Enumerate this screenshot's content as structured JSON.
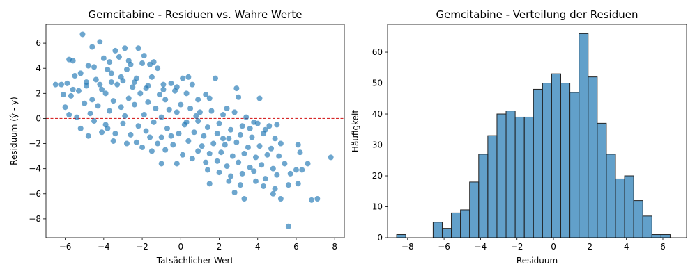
{
  "chart_data": [
    {
      "type": "scatter",
      "title": "Gemcitabine - Residuen vs. Wahre Werte",
      "xlabel": "Tatsächlicher Wert",
      "ylabel": "Residuum (ŷ - y)",
      "xlim": [
        -7,
        8.5
      ],
      "ylim": [
        -9.5,
        7.5
      ],
      "xticks": [
        -6,
        -4,
        -2,
        0,
        2,
        4,
        6,
        8
      ],
      "yticks": [
        -8,
        -6,
        -4,
        -2,
        0,
        2,
        4,
        6
      ],
      "color": "#1f77b4",
      "reference_line": {
        "y": 0,
        "color": "#d62728",
        "style": "dashed"
      },
      "points": [
        [
          -5.1,
          6.7
        ],
        [
          -4.2,
          6.1
        ],
        [
          -2.9,
          5.6
        ],
        [
          -3.4,
          5.4
        ],
        [
          -2.2,
          5.6
        ],
        [
          -4.6,
          5.7
        ],
        [
          -1.6,
          4.3
        ],
        [
          -1.9,
          5.0
        ],
        [
          -5.8,
          4.7
        ],
        [
          -5.6,
          4.6
        ],
        [
          -3.2,
          4.9
        ],
        [
          -2.6,
          4.3
        ],
        [
          -4.0,
          4.8
        ],
        [
          -1.2,
          4.0
        ],
        [
          -3.8,
          3.9
        ],
        [
          -2.0,
          4.4
        ],
        [
          -4.8,
          4.2
        ],
        [
          -5.2,
          3.6
        ],
        [
          -5.5,
          3.4
        ],
        [
          -3.6,
          3.6
        ],
        [
          -2.8,
          3.9
        ],
        [
          -2.3,
          3.2
        ],
        [
          -3.0,
          3.0
        ],
        [
          -4.4,
          3.1
        ],
        [
          -1.5,
          3.3
        ],
        [
          -0.5,
          2.8
        ],
        [
          0.1,
          3.2
        ],
        [
          0.4,
          3.3
        ],
        [
          -0.9,
          2.7
        ],
        [
          -4.9,
          2.9
        ],
        [
          -5.9,
          2.8
        ],
        [
          -6.2,
          2.7
        ],
        [
          -3.3,
          2.7
        ],
        [
          -2.5,
          2.5
        ],
        [
          -1.8,
          2.4
        ],
        [
          -4.1,
          2.3
        ],
        [
          -5.3,
          2.2
        ],
        [
          -3.9,
          2.0
        ],
        [
          -2.1,
          2.0
        ],
        [
          -1.1,
          1.9
        ],
        [
          -0.3,
          2.2
        ],
        [
          0.3,
          2.0
        ],
        [
          0.6,
          2.7
        ],
        [
          1.3,
          1.9
        ],
        [
          1.8,
          3.2
        ],
        [
          2.9,
          2.4
        ],
        [
          3.0,
          1.7
        ],
        [
          4.1,
          1.6
        ],
        [
          -6.1,
          1.9
        ],
        [
          -5.7,
          1.8
        ],
        [
          -4.6,
          1.5
        ],
        [
          -3.5,
          1.4
        ],
        [
          -2.7,
          1.6
        ],
        [
          -1.7,
          1.3
        ],
        [
          -0.8,
          1.5
        ],
        [
          0.0,
          1.1
        ],
        [
          -5.0,
          1.2
        ],
        [
          -4.3,
          1.0
        ],
        [
          -3.1,
          0.9
        ],
        [
          -2.4,
          1.1
        ],
        [
          -1.3,
          0.8
        ],
        [
          -0.6,
          0.7
        ],
        [
          0.5,
          0.8
        ],
        [
          1.0,
          0.5
        ],
        [
          -6.0,
          0.9
        ],
        [
          -5.8,
          0.3
        ],
        [
          -5.4,
          0.1
        ],
        [
          -4.7,
          0.4
        ],
        [
          -3.7,
          0.6
        ],
        [
          -2.9,
          0.2
        ],
        [
          -1.9,
          0.3
        ],
        [
          -1.0,
          0.1
        ],
        [
          -0.2,
          0.5
        ],
        [
          0.8,
          0.2
        ],
        [
          1.6,
          0.6
        ],
        [
          2.2,
          0.3
        ],
        [
          2.8,
          0.5
        ],
        [
          3.4,
          0.1
        ],
        [
          3.8,
          -0.3
        ],
        [
          -4.5,
          -0.2
        ],
        [
          -3.9,
          -0.5
        ],
        [
          -3.0,
          -0.4
        ],
        [
          -2.2,
          -0.6
        ],
        [
          -1.4,
          -0.3
        ],
        [
          -0.7,
          -0.8
        ],
        [
          0.2,
          -0.5
        ],
        [
          0.9,
          -0.2
        ],
        [
          1.4,
          -0.7
        ],
        [
          2.0,
          -0.4
        ],
        [
          2.6,
          -0.9
        ],
        [
          3.2,
          -0.6
        ],
        [
          4.0,
          -0.4
        ],
        [
          4.6,
          -0.6
        ],
        [
          5.0,
          -0.5
        ],
        [
          -5.2,
          -0.8
        ],
        [
          -4.8,
          -1.4
        ],
        [
          -4.1,
          -1.1
        ],
        [
          -3.4,
          -1.2
        ],
        [
          -2.6,
          -1.3
        ],
        [
          -1.8,
          -1.0
        ],
        [
          -1.0,
          -1.5
        ],
        [
          -0.1,
          -1.2
        ],
        [
          0.7,
          -1.1
        ],
        [
          1.2,
          -1.4
        ],
        [
          1.9,
          -1.2
        ],
        [
          2.5,
          -1.6
        ],
        [
          3.1,
          -1.3
        ],
        [
          3.7,
          -1.5
        ],
        [
          4.3,
          -1.2
        ],
        [
          4.9,
          -1.6
        ],
        [
          -3.5,
          -1.8
        ],
        [
          -2.8,
          -2.0
        ],
        [
          -2.0,
          -2.3
        ],
        [
          -1.2,
          -2.0
        ],
        [
          -0.4,
          -2.1
        ],
        [
          0.4,
          -1.8
        ],
        [
          1.1,
          -2.2
        ],
        [
          1.7,
          -2.0
        ],
        [
          2.3,
          -2.1
        ],
        [
          2.9,
          -1.9
        ],
        [
          3.5,
          -2.3
        ],
        [
          4.1,
          -2.2
        ],
        [
          4.7,
          -2.4
        ],
        [
          5.2,
          -2.0
        ],
        [
          6.1,
          -2.1
        ],
        [
          -1.5,
          -2.6
        ],
        [
          -0.8,
          -2.5
        ],
        [
          0.1,
          -2.9
        ],
        [
          0.9,
          -2.6
        ],
        [
          1.5,
          -2.8
        ],
        [
          2.1,
          -2.7
        ],
        [
          2.7,
          -3.0
        ],
        [
          3.3,
          -2.8
        ],
        [
          3.9,
          -3.1
        ],
        [
          4.5,
          -2.9
        ],
        [
          5.1,
          -3.0
        ],
        [
          6.2,
          -2.7
        ],
        [
          7.8,
          -3.1
        ],
        [
          -1.0,
          -3.6
        ],
        [
          -0.2,
          -3.6
        ],
        [
          0.6,
          -3.2
        ],
        [
          1.3,
          -3.5
        ],
        [
          1.9,
          -3.4
        ],
        [
          2.4,
          -3.8
        ],
        [
          3.0,
          -3.5
        ],
        [
          3.6,
          -3.9
        ],
        [
          4.2,
          -3.7
        ],
        [
          4.8,
          -4.0
        ],
        [
          5.4,
          -3.6
        ],
        [
          6.0,
          -4.1
        ],
        [
          6.6,
          -3.6
        ],
        [
          1.4,
          -4.1
        ],
        [
          2.0,
          -4.3
        ],
        [
          2.6,
          -4.6
        ],
        [
          3.2,
          -4.4
        ],
        [
          3.8,
          -4.2
        ],
        [
          4.4,
          -4.8
        ],
        [
          5.0,
          -4.5
        ],
        [
          5.7,
          -4.4
        ],
        [
          6.3,
          -4.1
        ],
        [
          1.5,
          -5.2
        ],
        [
          2.5,
          -5.0
        ],
        [
          3.1,
          -5.3
        ],
        [
          3.9,
          -5.0
        ],
        [
          4.3,
          -5.4
        ],
        [
          4.9,
          -5.6
        ],
        [
          5.6,
          -5.3
        ],
        [
          6.1,
          -5.2
        ],
        [
          2.8,
          -5.9
        ],
        [
          3.3,
          -6.4
        ],
        [
          4.8,
          -6.0
        ],
        [
          5.2,
          -6.4
        ],
        [
          6.8,
          -6.5
        ],
        [
          7.1,
          -6.4
        ],
        [
          5.6,
          -8.6
        ],
        [
          -6.5,
          2.7
        ],
        [
          -5.6,
          2.3
        ],
        [
          -4.9,
          2.6
        ],
        [
          -4.2,
          2.7
        ],
        [
          -3.6,
          2.9
        ],
        [
          -3.1,
          3.3
        ],
        [
          -2.4,
          2.9
        ],
        [
          -1.7,
          2.6
        ],
        [
          -0.9,
          2.3
        ],
        [
          -4.5,
          4.1
        ],
        [
          -3.7,
          4.5
        ],
        [
          -2.7,
          4.6
        ],
        [
          -1.4,
          4.5
        ],
        [
          -0.2,
          2.5
        ],
        [
          0.9,
          1.5
        ],
        [
          1.5,
          1.6
        ],
        [
          2.4,
          0.8
        ],
        [
          -3.8,
          -0.8
        ],
        [
          -2.3,
          -1.9
        ],
        [
          -1.6,
          -1.5
        ],
        [
          -0.5,
          -1.4
        ],
        [
          0.3,
          -0.3
        ],
        [
          2.2,
          -1.6
        ],
        [
          3.6,
          -0.8
        ],
        [
          4.4,
          -0.9
        ]
      ]
    },
    {
      "type": "bar",
      "subtype": "histogram",
      "title": "Gemcitabine - Verteilung der Residuen",
      "xlabel": "Residuum",
      "ylabel": "Häufigkeit",
      "xlim": [
        -9.1,
        7.3
      ],
      "ylim": [
        0,
        69
      ],
      "xticks": [
        -8,
        -6,
        -4,
        -2,
        0,
        2,
        4,
        6
      ],
      "yticks": [
        0,
        10,
        20,
        30,
        40,
        50,
        60
      ],
      "color": "#1f77b4",
      "bin_start": -8.6,
      "bin_width": 0.5,
      "values": [
        1,
        0,
        0,
        0,
        5,
        3,
        8,
        9,
        18,
        27,
        33,
        40,
        41,
        39,
        39,
        48,
        50,
        53,
        50,
        47,
        66,
        52,
        37,
        27,
        19,
        20,
        12,
        7,
        1,
        1
      ]
    }
  ]
}
